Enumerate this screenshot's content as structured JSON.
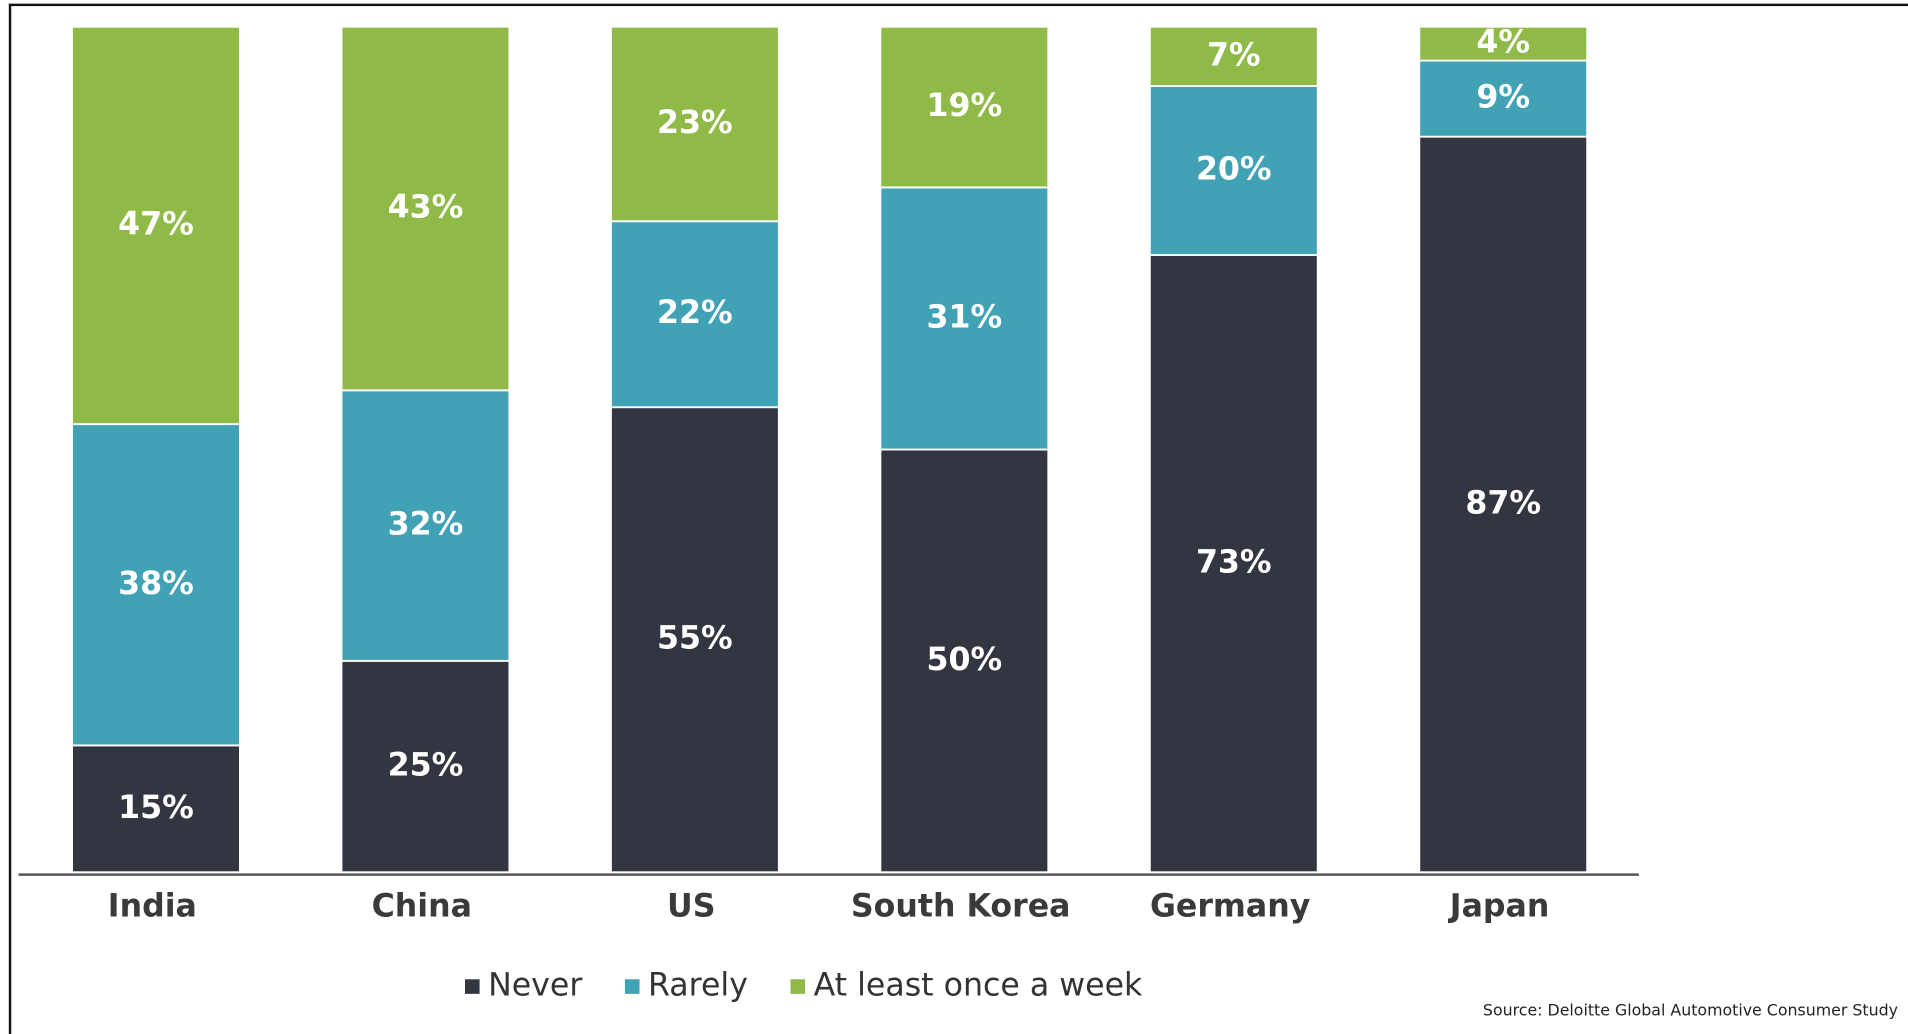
{
  "chart_data": {
    "type": "stacked_bar",
    "categories": [
      "India",
      "China",
      "US",
      "South Korea",
      "Germany",
      "Japan"
    ],
    "series": [
      {
        "name": "Never",
        "color": "#333640",
        "values": [
          15,
          25,
          55,
          50,
          73,
          87
        ],
        "value_labels": [
          "15%",
          "25%",
          "55%",
          "50%",
          "73%",
          "87%"
        ]
      },
      {
        "name": "Rarely",
        "color": "#41a2b6",
        "values": [
          38,
          32,
          22,
          31,
          20,
          9
        ],
        "value_labels": [
          "38%",
          "32%",
          "22%",
          "31%",
          "20%",
          "9%"
        ]
      },
      {
        "name": "At least once a week",
        "color": "#8fba48",
        "values": [
          47,
          43,
          23,
          19,
          7,
          4
        ],
        "value_labels": [
          "47%",
          "43%",
          "23%",
          "19%",
          "7%",
          "4%"
        ]
      }
    ],
    "annotation": "Source: Deloitte Global Automotive Consumer Study"
  }
}
